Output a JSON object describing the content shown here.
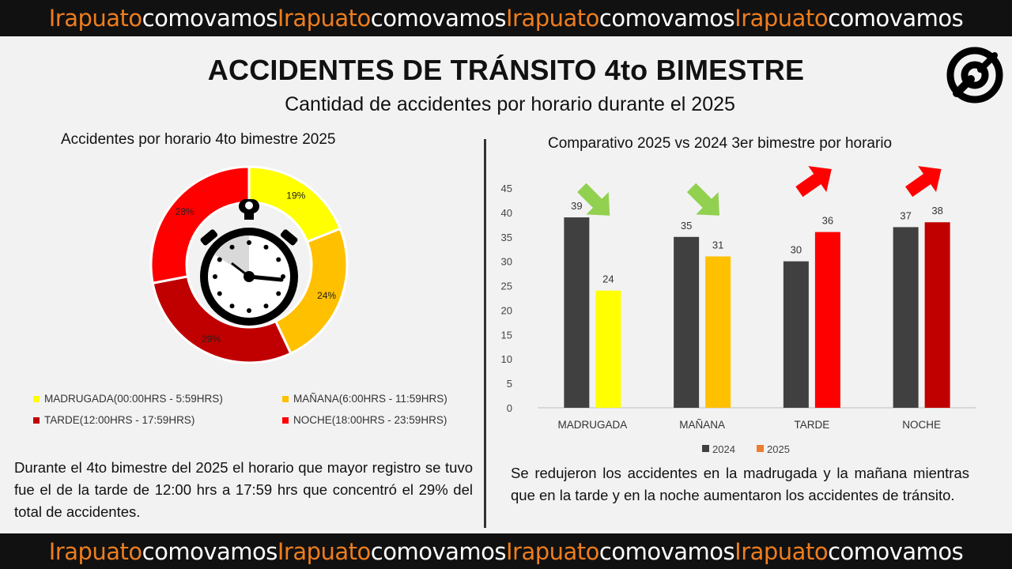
{
  "banner": [
    {
      "orange": "Irapuato",
      "white": "comovamos"
    },
    {
      "orange": "Irapuato",
      "white": "comovamos"
    },
    {
      "orange": "Irapuato",
      "white": "comovamos"
    },
    {
      "orange": "Irapuato",
      "white": "comovamos"
    }
  ],
  "header": {
    "title": "ACCIDENTES DE TRÁNSITO 4to BIMESTRE",
    "subtitle": "Cantidad de accidentes por horario durante el 2025"
  },
  "colors": {
    "madrugada": "#ffff00",
    "manana": "#ffc000",
    "tarde": "#c00000",
    "noche": "#ff0000",
    "bar2024": "#404040",
    "legend2025": "#ed7d31",
    "arrow_down": "#92d050",
    "arrow_up": "#ff0000",
    "banner_orange": "#ee7d1d"
  },
  "chart_data": [
    {
      "type": "pie",
      "title": "Accidentes por horario 4to bimestre 2025",
      "donut": true,
      "slices": [
        {
          "label": "MADRUGADA(00:00HRS - 5:59HRS)",
          "value": 19,
          "value_label": "19%",
          "color_key": "madrugada"
        },
        {
          "label": "MAÑANA(6:00HRS - 11:59HRS)",
          "value": 24,
          "value_label": "24%",
          "color_key": "manana"
        },
        {
          "label": "TARDE(12:00HRS - 17:59HRS)",
          "value": 29,
          "value_label": "29%",
          "color_key": "tarde"
        },
        {
          "label": "NOCHE(18:00HRS - 23:59HRS)",
          "value": 28,
          "value_label": "28%",
          "color_key": "noche"
        }
      ],
      "legend": "bottom",
      "legend_order": [
        {
          "label": "MADRUGADA(00:00HRS - 5:59HRS)",
          "color_key": "madrugada"
        },
        {
          "label": "MAÑANA(6:00HRS - 11:59HRS)",
          "color_key": "manana"
        },
        {
          "label": "TARDE(12:00HRS - 17:59HRS)",
          "color_key": "tarde"
        },
        {
          "label": "NOCHE(18:00HRS - 23:59HRS)",
          "color_key": "noche"
        }
      ]
    },
    {
      "type": "bar",
      "title": "Comparativo 2025 vs 2024 3er bimestre por horario",
      "categories": [
        "MADRUGADA",
        "MAÑANA",
        "TARDE",
        "NOCHE"
      ],
      "series": [
        {
          "name": "2024",
          "values": [
            39,
            35,
            30,
            37
          ]
        },
        {
          "name": "2025",
          "values": [
            24,
            31,
            36,
            38
          ]
        }
      ],
      "bar_colors_2025": [
        "madrugada",
        "manana",
        "noche",
        "tarde"
      ],
      "trend": [
        "down",
        "down",
        "up",
        "up"
      ],
      "ylim": [
        0,
        45
      ],
      "yticks": [
        0,
        5,
        10,
        15,
        20,
        25,
        30,
        35,
        40,
        45
      ],
      "grid": false,
      "legend": "bottom"
    }
  ],
  "text": {
    "left": "Durante el 4to bimestre del 2025 el horario que mayor registro se tuvo fue el de la tarde de 12:00 hrs a 17:59 hrs que concentró el 29% del total de accidentes.",
    "right": "Se redujeron los accidentes en la madrugada y la mañana mientras que en la tarde y en la noche aumentaron los accidentes de tránsito."
  }
}
